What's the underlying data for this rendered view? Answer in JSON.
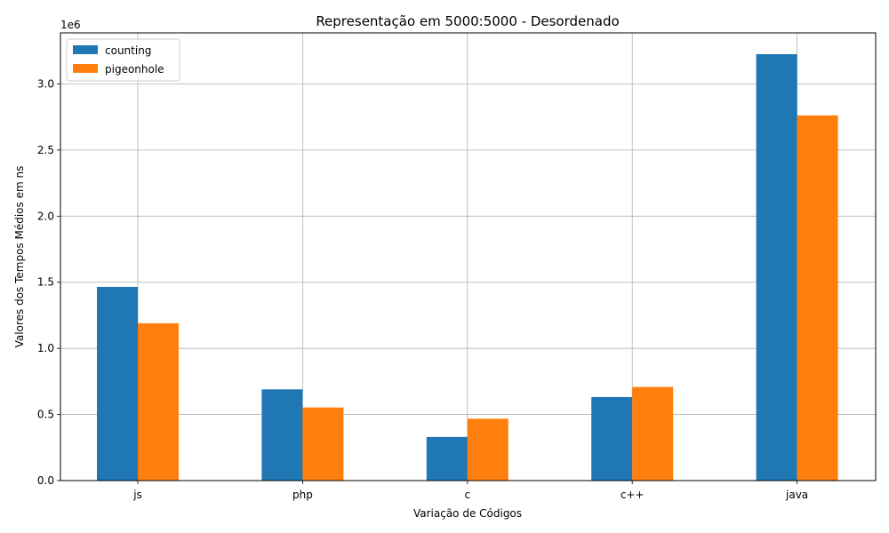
{
  "chart_data": {
    "type": "bar",
    "title": "Representação em 5000:5000 - Desordenado",
    "xlabel": "Variação de Códigos",
    "ylabel": "Valores dos Tempos Médios em ns",
    "offset_label": "1e6",
    "categories": [
      "js",
      "php",
      "c",
      "c++",
      "java"
    ],
    "series": [
      {
        "name": "counting",
        "color": "#1f77b4",
        "values": [
          1465000,
          690000,
          330000,
          632000,
          3225000
        ]
      },
      {
        "name": "pigeonhole",
        "color": "#ff7f0e",
        "values": [
          1190000,
          553000,
          468000,
          708000,
          2762000
        ]
      }
    ],
    "yticks": [
      0,
      500000,
      1000000,
      1500000,
      2000000,
      2500000,
      3000000
    ],
    "ytick_labels": [
      "0.0",
      "0.5",
      "1.0",
      "1.5",
      "2.0",
      "2.5",
      "3.0"
    ],
    "ylim": [
      0,
      3386250
    ],
    "grid": true,
    "legend_position": "top-left"
  }
}
